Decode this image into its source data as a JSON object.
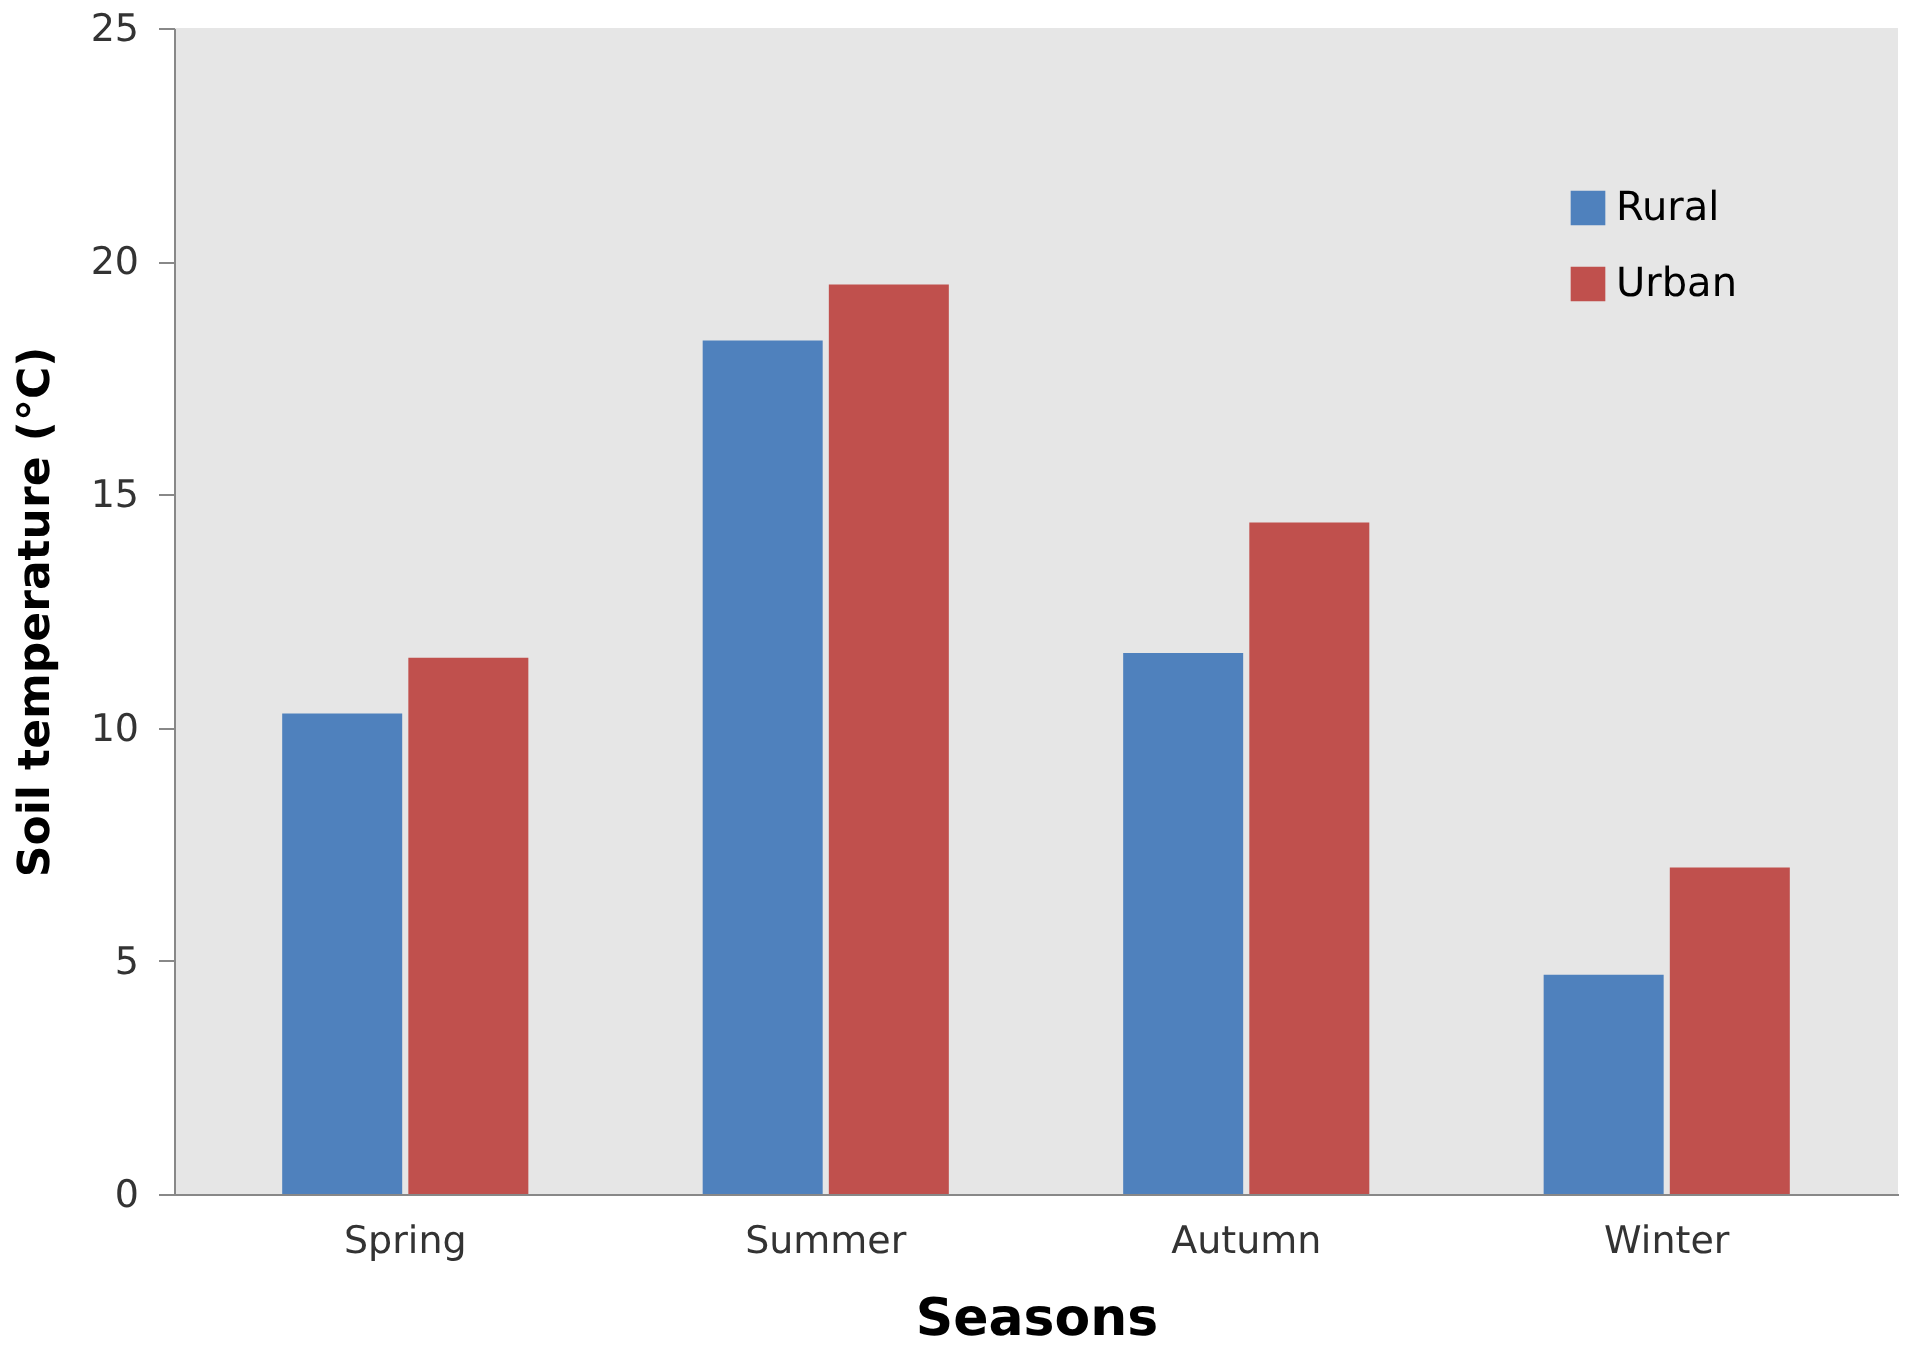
{
  "chart_data": {
    "type": "bar",
    "xlabel": "Seasons",
    "ylabel": "Soil temperature (°C)",
    "categories": [
      "Spring",
      "Summer",
      "Autumn",
      "Winter"
    ],
    "series": [
      {
        "name": "Rural",
        "color": "#4f81bd",
        "values": [
          10.3,
          18.3,
          11.6,
          4.7
        ]
      },
      {
        "name": "Urban",
        "color": "#c0504d",
        "values": [
          11.5,
          19.5,
          14.4,
          7.0
        ]
      }
    ],
    "ylim": [
      0,
      25
    ],
    "yticks": [
      0,
      5,
      10,
      15,
      20,
      25
    ],
    "grid": false,
    "legend": "top right"
  }
}
